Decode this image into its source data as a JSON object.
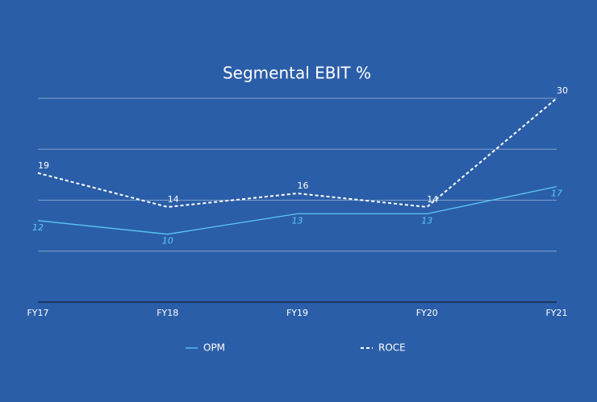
{
  "chart_data": {
    "type": "line",
    "title": "Segmental EBIT %",
    "categories": [
      "FY17",
      "FY18",
      "FY19",
      "FY20",
      "FY21"
    ],
    "series": [
      {
        "name": "OPM",
        "color": "#5bc8f5",
        "dash": false,
        "values": [
          12,
          10,
          13,
          13,
          17
        ]
      },
      {
        "name": "ROCE",
        "color": "#ffffff",
        "dash": true,
        "values": [
          19,
          14,
          16,
          14,
          30
        ]
      }
    ],
    "ylim": [
      0,
      30
    ],
    "yticks": [
      0,
      7.5,
      15,
      22.5,
      30
    ],
    "grid": true
  }
}
